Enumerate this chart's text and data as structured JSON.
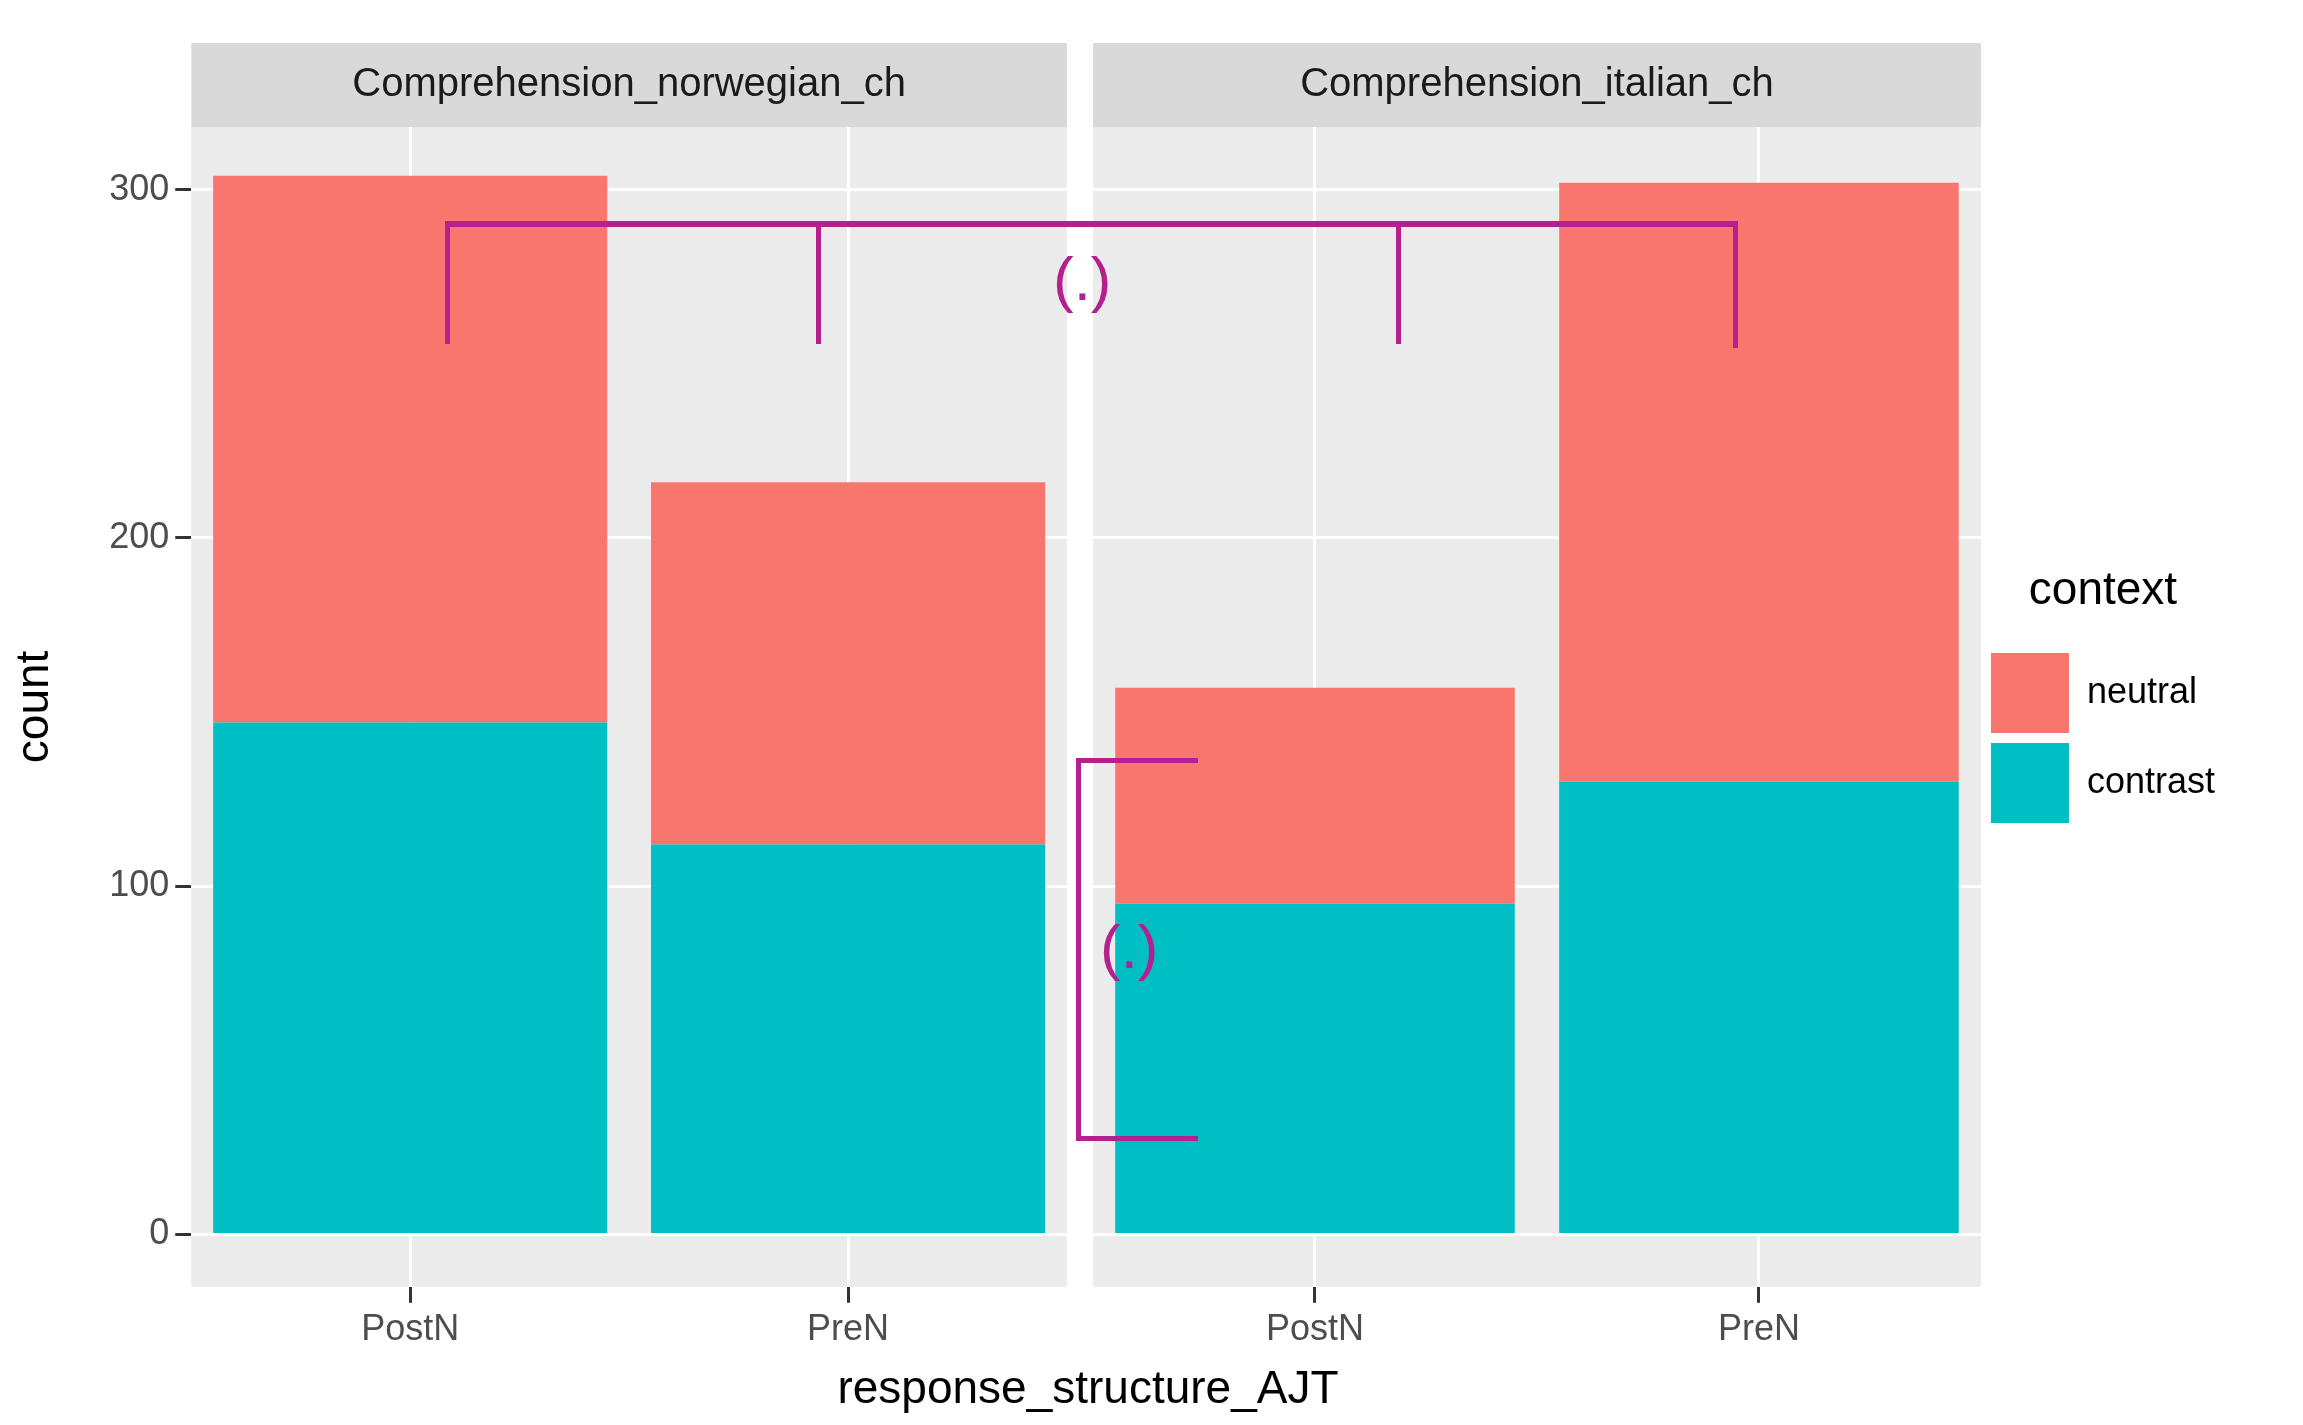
{
  "chart_data": [
    {
      "type": "bar",
      "title": "Comprehension_norwegian_ch",
      "ylabel": "count",
      "xlabel": "response_structure_AJT",
      "categories": [
        "PostN",
        "PreN"
      ],
      "stacked": true,
      "series": [
        {
          "color": "#00bfc4",
          "values": [
            147,
            112
          ]
        },
        {
          "color": "#f8766d",
          "values": [
            157,
            104
          ]
        }
      ],
      "ylim": [
        -15,
        318
      ],
      "yticks": [
        0,
        100,
        200,
        300
      ],
      "grid": true,
      "annotations": [
        "(.)"
      ]
    },
    {
      "type": "bar",
      "title": "Comprehension_italian_ch",
      "categories": [
        "PostN",
        "PreN"
      ],
      "stacked": true,
      "series": [
        {
          "name": "contrast",
          "color": "#00bfc4",
          "values": [
            95,
            130
          ]
        },
        {
          "name": "neutral",
          "color": "#f8766d",
          "values": [
            62,
            172
          ]
        }
      ],
      "ylim": [
        -15,
        318
      ],
      "yticks": [
        0,
        100,
        200,
        300
      ],
      "grid": true,
      "tick_labels": "x",
      "legend": "right",
      "legend_title": "context",
      "annotations": [
        "(.)"
      ]
    }
  ]
}
